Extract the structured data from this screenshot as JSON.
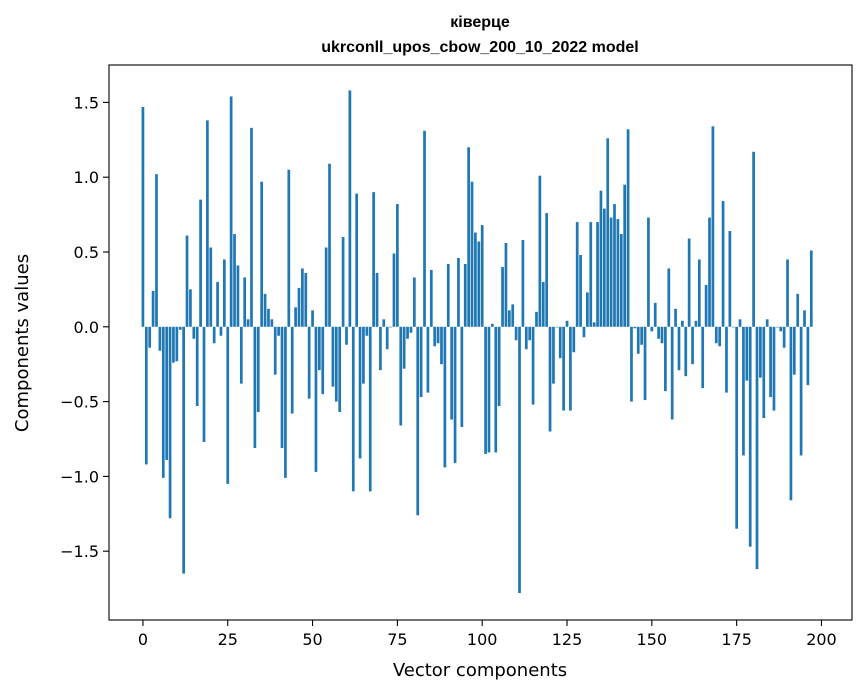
{
  "chart_data": {
    "type": "bar",
    "title": "ківерце",
    "subtitle": "ukrconll_upos_cbow_200_10_2022 model",
    "xlabel": "Vector components",
    "ylabel": "Components values",
    "xlim": [
      -10,
      209
    ],
    "ylim": [
      -1.96,
      1.75
    ],
    "xticks": [
      0,
      25,
      50,
      75,
      100,
      125,
      150,
      175,
      200
    ],
    "xtick_labels": [
      "0",
      "25",
      "50",
      "75",
      "100",
      "125",
      "150",
      "175",
      "200"
    ],
    "yticks": [
      -1.5,
      -1.0,
      -0.5,
      0.0,
      0.5,
      1.0,
      1.5
    ],
    "ytick_labels": [
      "−1.5",
      "−1.0",
      "−0.5",
      "0.0",
      "0.5",
      "1.0",
      "1.5"
    ],
    "grid": false,
    "bar_color": "#1f77b4",
    "values": [
      1.47,
      -0.92,
      -0.14,
      0.24,
      1.02,
      -0.16,
      -1.01,
      -0.89,
      -1.28,
      -0.24,
      -0.23,
      -0.02,
      -1.65,
      0.61,
      0.25,
      -0.08,
      -0.53,
      0.85,
      -0.77,
      1.38,
      0.53,
      -0.11,
      0.3,
      -0.06,
      0.45,
      -1.05,
      1.54,
      0.62,
      0.41,
      -0.38,
      0.33,
      0.05,
      1.33,
      -0.81,
      -0.57,
      0.97,
      0.22,
      0.12,
      0.05,
      -0.32,
      -0.06,
      -0.81,
      -1.01,
      1.05,
      -0.58,
      0.13,
      0.26,
      0.39,
      0.36,
      -0.48,
      0.11,
      -0.97,
      -0.29,
      -0.45,
      0.53,
      1.09,
      -0.4,
      -0.5,
      -0.57,
      0.6,
      -0.12,
      1.58,
      -1.1,
      0.89,
      -0.88,
      -0.38,
      -0.06,
      -1.1,
      0.9,
      0.36,
      -0.29,
      0.05,
      -0.15,
      0.0,
      0.49,
      0.82,
      -0.66,
      -0.28,
      -0.08,
      -0.04,
      0.33,
      -1.26,
      -0.47,
      1.31,
      -0.44,
      0.38,
      -0.13,
      -0.11,
      -0.25,
      -0.94,
      0.42,
      -0.62,
      -0.91,
      0.46,
      -0.67,
      0.42,
      1.2,
      0.97,
      0.63,
      0.57,
      0.68,
      -0.85,
      -0.84,
      0.02,
      -0.84,
      -0.53,
      0.4,
      0.56,
      0.11,
      0.15,
      -0.09,
      -1.78,
      0.58,
      -0.15,
      -0.09,
      -0.52,
      0.1,
      1.01,
      0.3,
      0.76,
      -0.7,
      -0.38,
      0.0,
      -0.21,
      -0.56,
      0.04,
      -0.56,
      -0.17,
      0.7,
      0.48,
      -0.07,
      0.23,
      0.7,
      0.03,
      0.7,
      0.91,
      0.79,
      1.26,
      0.73,
      0.82,
      0.72,
      0.62,
      0.95,
      1.32,
      -0.5,
      -0.01,
      -0.18,
      -0.12,
      -0.49,
      0.73,
      -0.03,
      0.16,
      -0.08,
      -0.11,
      -0.43,
      0.39,
      -0.62,
      0.12,
      -0.29,
      0.04,
      -0.33,
      0.59,
      -0.25,
      0.04,
      0.45,
      -0.41,
      0.28,
      0.73,
      1.34,
      -0.11,
      -0.13,
      0.84,
      -0.44,
      0.64,
      0.0,
      -1.35,
      0.05,
      -0.86,
      -0.36,
      -1.47,
      1.17,
      -1.62,
      -0.34,
      -0.61,
      0.05,
      -0.47,
      -0.56,
      0.0,
      -0.03,
      -0.14,
      0.45,
      -1.16,
      -0.32,
      0.22,
      -0.86,
      0.11,
      -0.39,
      0.51
    ]
  }
}
